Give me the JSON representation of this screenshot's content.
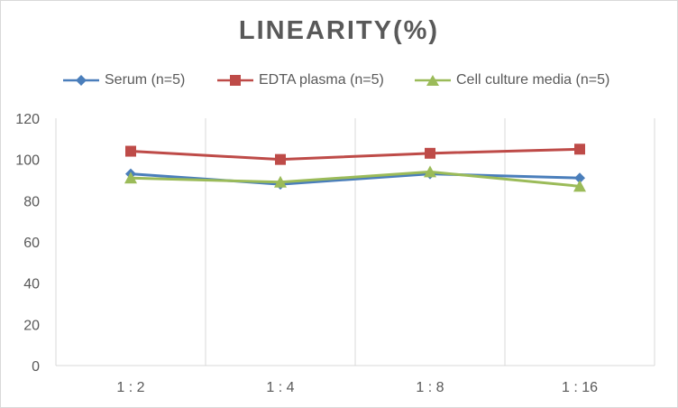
{
  "chart_data": {
    "type": "line",
    "title": "LINEARITY(%)",
    "xlabel": "",
    "ylabel": "",
    "categories": [
      "1 : 2",
      "1 : 4",
      "1 : 8",
      "1 : 16"
    ],
    "ylim": [
      0,
      120
    ],
    "yticks": [
      "0",
      "20",
      "40",
      "60",
      "80",
      "100",
      "120"
    ],
    "grid": "vertical",
    "legend_position": "top",
    "series": [
      {
        "name": "Serum (n=5)",
        "values": [
          93,
          88,
          93,
          91
        ],
        "color": "#4a7ebb",
        "marker": "diamond"
      },
      {
        "name": "EDTA plasma (n=5)",
        "values": [
          104,
          100,
          103,
          105
        ],
        "color": "#be4b48",
        "marker": "square"
      },
      {
        "name": "Cell culture media (n=5)",
        "values": [
          91,
          89,
          94,
          87
        ],
        "color": "#9bbb59",
        "marker": "triangle"
      }
    ]
  }
}
